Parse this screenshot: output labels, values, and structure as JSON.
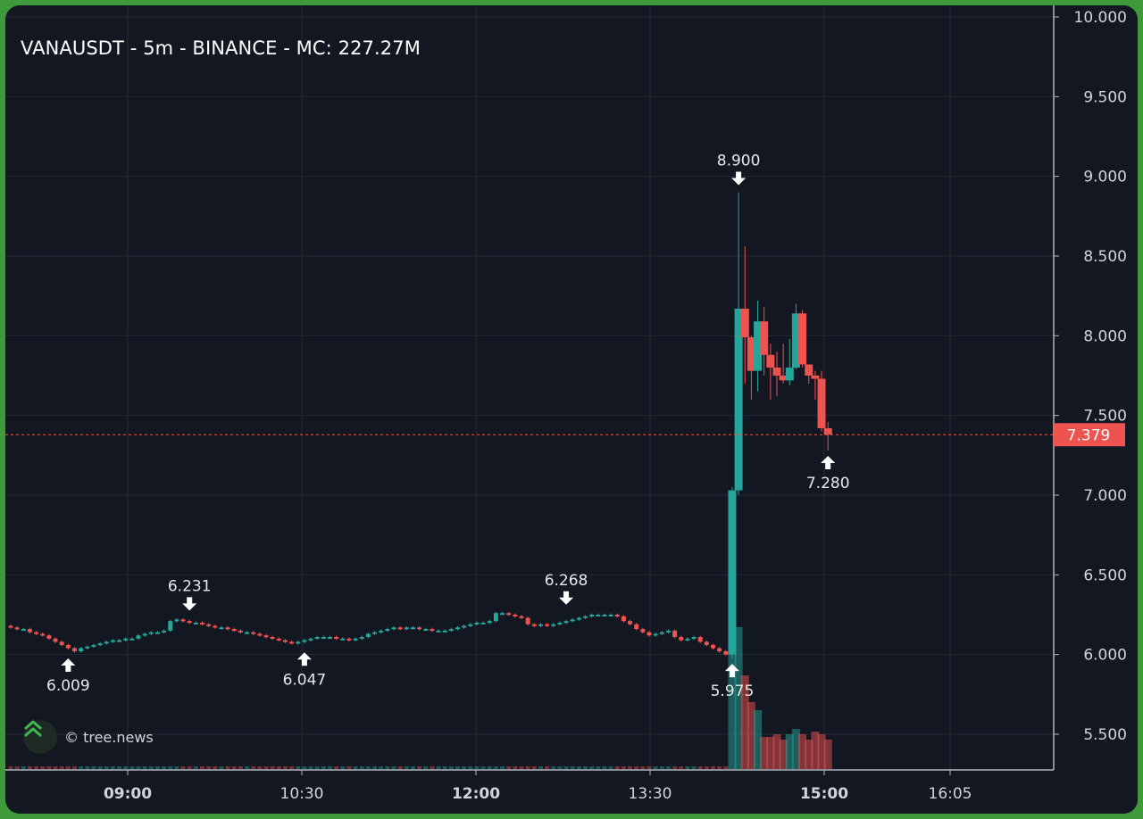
{
  "title": "VANAUSDT - 5m - BINANCE - MC: 227.27M",
  "watermark": "© tree.news",
  "colors": {
    "up": "#26a69a",
    "down": "#ef5350",
    "background": "#131722",
    "grid": "#232836",
    "frame": "#3f9a3c"
  },
  "last_price": {
    "value": 7.379,
    "label": "7.379"
  },
  "chart_data": {
    "type": "candlestick",
    "symbol": "VANAUSDT",
    "interval": "5m",
    "exchange": "BINANCE",
    "ylim": [
      5.27,
      10.0
    ],
    "y_ticks": [
      "10.000",
      "9.500",
      "9.000",
      "8.500",
      "8.000",
      "7.500",
      "7.000",
      "6.500",
      "6.000",
      "5.500"
    ],
    "x_ticks": [
      {
        "label": "09:00",
        "bold": true
      },
      {
        "label": "10:30",
        "bold": false
      },
      {
        "label": "12:00",
        "bold": true
      },
      {
        "label": "13:30",
        "bold": false
      },
      {
        "label": "15:00",
        "bold": true
      },
      {
        "label": "16:05",
        "bold": false
      }
    ],
    "grid": true,
    "annotations": [
      {
        "label": "6.009",
        "type": "low",
        "value": 6.009
      },
      {
        "label": "6.231",
        "type": "high",
        "value": 6.231
      },
      {
        "label": "6.047",
        "type": "low",
        "value": 6.047
      },
      {
        "label": "6.268",
        "type": "high",
        "value": 6.268
      },
      {
        "label": "5.975",
        "type": "low",
        "value": 5.975
      },
      {
        "label": "8.900",
        "type": "high",
        "value": 8.9
      },
      {
        "label": "7.280",
        "type": "low",
        "value": 7.28
      }
    ],
    "pre_spike_closes": [
      6.17,
      6.16,
      6.16,
      6.14,
      6.13,
      6.12,
      6.1,
      6.08,
      6.06,
      6.04,
      6.02,
      6.04,
      6.05,
      6.06,
      6.07,
      6.08,
      6.09,
      6.09,
      6.1,
      6.1,
      6.12,
      6.13,
      6.14,
      6.14,
      6.15,
      6.21,
      6.22,
      6.21,
      6.2,
      6.2,
      6.19,
      6.18,
      6.17,
      6.17,
      6.16,
      6.15,
      6.14,
      6.14,
      6.13,
      6.12,
      6.11,
      6.1,
      6.09,
      6.08,
      6.07,
      6.08,
      6.09,
      6.1,
      6.11,
      6.11,
      6.11,
      6.1,
      6.1,
      6.09,
      6.1,
      6.11,
      6.13,
      6.14,
      6.15,
      6.16,
      6.17,
      6.16,
      6.17,
      6.17,
      6.16,
      6.16,
      6.15,
      6.15,
      6.15,
      6.16,
      6.17,
      6.18,
      6.19,
      6.2,
      6.2,
      6.21,
      6.26,
      6.26,
      6.25,
      6.24,
      6.23,
      6.19,
      6.18,
      6.19,
      6.18,
      6.19,
      6.2,
      6.21,
      6.22,
      6.23,
      6.24,
      6.25,
      6.25,
      6.25,
      6.25,
      6.24,
      6.21,
      6.19,
      6.16,
      6.14,
      6.12,
      6.13,
      6.14,
      6.15,
      6.11,
      6.09,
      6.1,
      6.11,
      6.08,
      6.06,
      6.04,
      6.02,
      6.0
    ],
    "spike_candles": [
      {
        "o": 6.0,
        "h": 7.05,
        "l": 5.975,
        "c": 7.03
      },
      {
        "o": 7.03,
        "h": 8.9,
        "l": 7.0,
        "c": 8.17
      },
      {
        "o": 8.17,
        "h": 8.56,
        "l": 7.7,
        "c": 7.99
      },
      {
        "o": 7.99,
        "h": 8.0,
        "l": 7.6,
        "c": 7.78
      },
      {
        "o": 7.78,
        "h": 8.22,
        "l": 7.65,
        "c": 8.09
      },
      {
        "o": 8.09,
        "h": 8.18,
        "l": 7.75,
        "c": 7.88
      },
      {
        "o": 7.88,
        "h": 7.95,
        "l": 7.6,
        "c": 7.8
      },
      {
        "o": 7.8,
        "h": 7.9,
        "l": 7.62,
        "c": 7.75
      },
      {
        "o": 7.75,
        "h": 7.95,
        "l": 7.7,
        "c": 7.72
      },
      {
        "o": 7.72,
        "h": 7.98,
        "l": 7.69,
        "c": 7.8
      },
      {
        "o": 7.8,
        "h": 8.2,
        "l": 7.79,
        "c": 8.14
      },
      {
        "o": 8.14,
        "h": 8.16,
        "l": 7.8,
        "c": 7.82
      },
      {
        "o": 7.82,
        "h": 7.82,
        "l": 7.7,
        "c": 7.75
      },
      {
        "o": 7.75,
        "h": 7.78,
        "l": 7.6,
        "c": 7.73
      },
      {
        "o": 7.73,
        "h": 7.78,
        "l": 7.4,
        "c": 7.42
      },
      {
        "o": 7.42,
        "h": 7.46,
        "l": 7.28,
        "c": 7.379
      }
    ],
    "spike_volume": [
      0.71,
      0.53,
      0.35,
      0.25,
      0.22,
      0.12,
      0.12,
      0.13,
      0.11,
      0.13,
      0.15,
      0.13,
      0.11,
      0.14,
      0.13,
      0.11
    ]
  }
}
